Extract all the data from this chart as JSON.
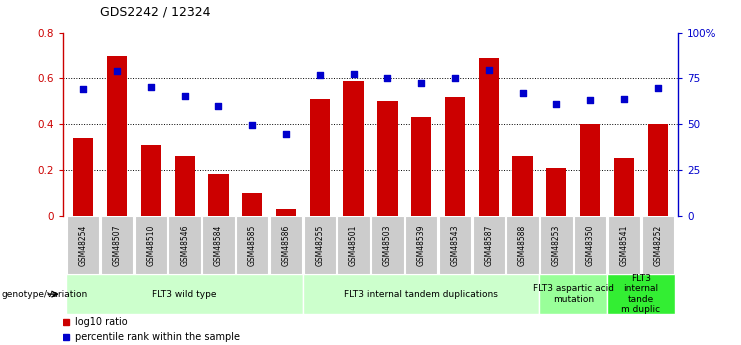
{
  "title": "GDS2242 / 12324",
  "samples": [
    "GSM48254",
    "GSM48507",
    "GSM48510",
    "GSM48546",
    "GSM48584",
    "GSM48585",
    "GSM48586",
    "GSM48255",
    "GSM48501",
    "GSM48503",
    "GSM48539",
    "GSM48543",
    "GSM48587",
    "GSM48588",
    "GSM48253",
    "GSM48350",
    "GSM48541",
    "GSM48252"
  ],
  "log10_ratio": [
    0.34,
    0.7,
    0.31,
    0.26,
    0.18,
    0.1,
    0.03,
    0.51,
    0.59,
    0.5,
    0.43,
    0.52,
    0.69,
    0.26,
    0.21,
    0.4,
    0.25,
    0.4
  ],
  "percentile_rank": [
    0.695,
    0.79,
    0.705,
    0.655,
    0.6,
    0.495,
    0.445,
    0.77,
    0.775,
    0.755,
    0.725,
    0.75,
    0.795,
    0.67,
    0.61,
    0.63,
    0.64,
    0.7
  ],
  "bar_color": "#cc0000",
  "dot_color": "#0000cc",
  "ylim_left": [
    0,
    0.8
  ],
  "ylim_right": [
    0,
    1.0
  ],
  "yticks_left": [
    0,
    0.2,
    0.4,
    0.6,
    0.8
  ],
  "ytick_labels_left": [
    "0",
    "0.2",
    "0.4",
    "0.6",
    "0.8"
  ],
  "yticks_right": [
    0,
    0.25,
    0.5,
    0.75,
    1.0
  ],
  "ytick_labels_right": [
    "0",
    "25",
    "50",
    "75",
    "100%"
  ],
  "groups": [
    {
      "label": "FLT3 wild type",
      "start": 0,
      "end": 7,
      "color": "#ccffcc"
    },
    {
      "label": "FLT3 internal tandem duplications",
      "start": 7,
      "end": 14,
      "color": "#ccffcc"
    },
    {
      "label": "FLT3 aspartic acid\nmutation",
      "start": 14,
      "end": 16,
      "color": "#99ff99"
    },
    {
      "label": "FLT3\ninternal\ntande\nm duplic",
      "start": 16,
      "end": 18,
      "color": "#33ee33"
    }
  ],
  "genotype_label": "genotype/variation",
  "legend_bar_label": "log10 ratio",
  "legend_dot_label": "percentile rank within the sample",
  "tick_bg_color": "#cccccc",
  "background_color": "#ffffff",
  "grid_color": "#000000",
  "fig_width": 7.41,
  "fig_height": 3.45,
  "dpi": 100
}
